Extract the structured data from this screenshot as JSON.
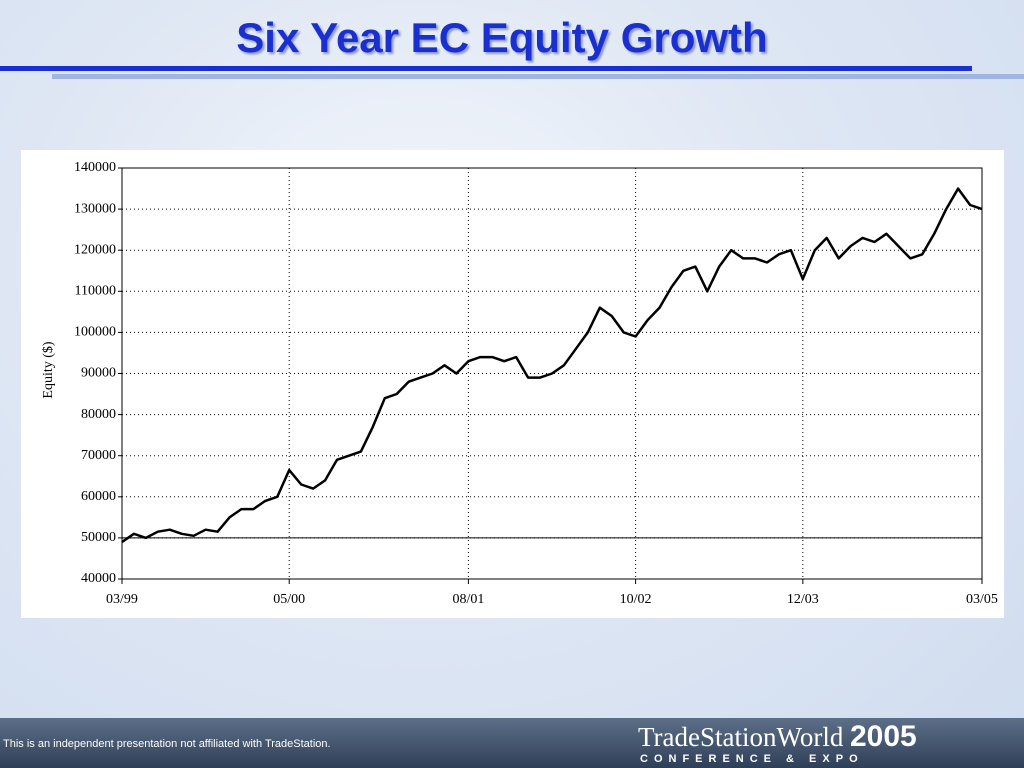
{
  "chart_data": {
    "type": "line",
    "title": "Six Year EC Equity Growth",
    "y_label": "Equity ($)",
    "x": [
      "1999-03",
      "1999-04",
      "1999-05",
      "1999-06",
      "1999-07",
      "1999-08",
      "1999-09",
      "1999-10",
      "1999-11",
      "1999-12",
      "2000-01",
      "2000-02",
      "2000-03",
      "2000-04",
      "2000-05",
      "2000-06",
      "2000-07",
      "2000-08",
      "2000-09",
      "2000-10",
      "2000-11",
      "2000-12",
      "2001-01",
      "2001-02",
      "2001-03",
      "2001-04",
      "2001-05",
      "2001-06",
      "2001-07",
      "2001-08",
      "2001-09",
      "2001-10",
      "2001-11",
      "2001-12",
      "2002-01",
      "2002-02",
      "2002-03",
      "2002-04",
      "2002-05",
      "2002-06",
      "2002-07",
      "2002-08",
      "2002-09",
      "2002-10",
      "2002-11",
      "2002-12",
      "2003-01",
      "2003-02",
      "2003-03",
      "2003-04",
      "2003-05",
      "2003-06",
      "2003-07",
      "2003-08",
      "2003-09",
      "2003-10",
      "2003-11",
      "2003-12",
      "2004-01",
      "2004-02",
      "2004-03",
      "2004-04",
      "2004-05",
      "2004-06",
      "2004-07",
      "2004-08",
      "2004-09",
      "2004-10",
      "2004-11",
      "2004-12",
      "2005-01",
      "2005-02",
      "2005-03"
    ],
    "values": [
      49000,
      51000,
      50000,
      51500,
      52000,
      51000,
      50500,
      52000,
      51500,
      55000,
      57000,
      57000,
      59000,
      60000,
      66500,
      63000,
      62000,
      64000,
      69000,
      70000,
      71000,
      77000,
      84000,
      85000,
      88000,
      89000,
      90000,
      92000,
      90000,
      93000,
      94000,
      94000,
      93000,
      94000,
      89000,
      89000,
      90000,
      92000,
      96000,
      100000,
      106000,
      104000,
      100000,
      99000,
      103000,
      106000,
      111000,
      115000,
      116000,
      110000,
      116000,
      120000,
      118000,
      118000,
      117000,
      119000,
      120000,
      113000,
      120000,
      123000,
      118000,
      121000,
      123000,
      122000,
      124000,
      121000,
      118000,
      119000,
      124000,
      130000,
      135000,
      131000,
      130000
    ],
    "color": "#000000",
    "xlim": [
      "1999-03",
      "2005-03"
    ],
    "xticks": [
      {
        "value": "1999-03",
        "label": "03/99"
      },
      {
        "value": "2000-05",
        "label": "05/00"
      },
      {
        "value": "2001-08",
        "label": "08/01"
      },
      {
        "value": "2002-10",
        "label": "10/02"
      },
      {
        "value": "2003-12",
        "label": "12/03"
      },
      {
        "value": "2005-03",
        "label": "03/05"
      }
    ],
    "ylim": [
      40000,
      140000
    ],
    "yticks": [
      40000,
      50000,
      60000,
      70000,
      80000,
      90000,
      100000,
      110000,
      120000,
      130000,
      140000
    ],
    "reference_line": 50000,
    "grid": true
  },
  "footer": {
    "disclaimer": "This is an independent presentation not affiliated with TradeStation.",
    "logo_name": "TradeStationWorld",
    "logo_year": "2005",
    "logo_tagline": "CONFERENCE & EXPO"
  }
}
